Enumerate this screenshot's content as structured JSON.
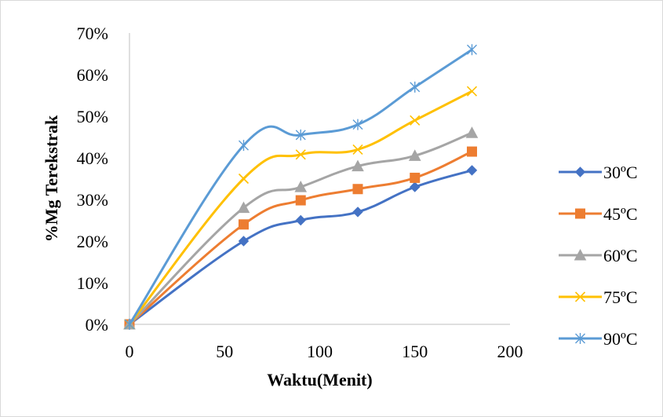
{
  "chart_data": {
    "type": "line",
    "title": "",
    "xlabel": "Waktu(Menit)",
    "ylabel": "%Mg Terekstrak",
    "xlim": [
      0,
      200
    ],
    "ylim": [
      0,
      0.7
    ],
    "x_ticks": [
      "0",
      "50",
      "100",
      "150",
      "200"
    ],
    "y_ticks": [
      "0%",
      "10%",
      "20%",
      "30%",
      "40%",
      "50%",
      "60%",
      "70%"
    ],
    "grid": false,
    "legend_position": "right",
    "x": [
      0,
      60,
      90,
      120,
      150,
      180
    ],
    "series": [
      {
        "name": "30ºC",
        "color": "#4472C4",
        "marker": "diamond",
        "values": [
          0,
          0.2,
          0.25,
          0.27,
          0.33,
          0.37
        ]
      },
      {
        "name": "45ºC",
        "color": "#ED7D31",
        "marker": "square",
        "values": [
          0,
          0.24,
          0.298,
          0.325,
          0.352,
          0.415
        ]
      },
      {
        "name": "60ºC",
        "color": "#A5A5A5",
        "marker": "triangle",
        "values": [
          0,
          0.28,
          0.33,
          0.38,
          0.405,
          0.46
        ]
      },
      {
        "name": "75ºC",
        "color": "#FFC000",
        "marker": "x",
        "values": [
          0,
          0.35,
          0.408,
          0.42,
          0.49,
          0.56
        ]
      },
      {
        "name": "90ºC",
        "color": "#5B9BD5",
        "marker": "asterisk",
        "values": [
          0,
          0.43,
          0.455,
          0.48,
          0.57,
          0.66
        ]
      }
    ]
  }
}
